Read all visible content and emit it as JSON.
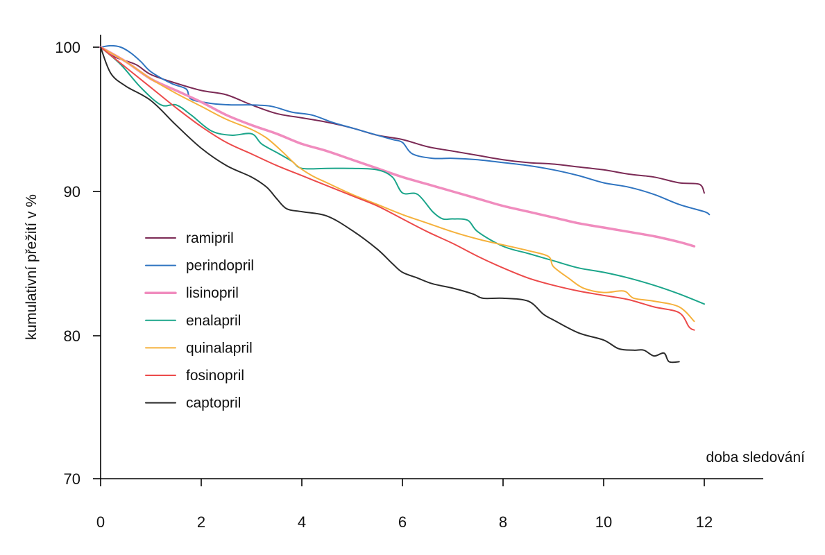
{
  "chart_data": {
    "type": "line",
    "title": "",
    "xlabel": "doba sledování",
    "ylabel": "kumulativní přežití v %",
    "xlim": [
      0,
      13
    ],
    "ylim": [
      70,
      100
    ],
    "xticks": [
      0,
      2,
      4,
      6,
      8,
      10,
      12
    ],
    "yticks": [
      70,
      80,
      90,
      100
    ],
    "grid": false,
    "legend_position": "left",
    "series": [
      {
        "name": "ramipril",
        "color": "#7b2a55",
        "width": 2,
        "x": [
          0,
          0.3,
          0.7,
          1.0,
          1.5,
          2.0,
          2.5,
          3.0,
          3.5,
          4.0,
          4.5,
          5.0,
          5.5,
          6.0,
          6.5,
          7.0,
          7.5,
          8.0,
          8.5,
          9.0,
          9.5,
          10.0,
          10.5,
          11.0,
          11.5,
          11.9,
          12.0
        ],
        "y": [
          100,
          99.3,
          98.8,
          98.1,
          97.5,
          97.0,
          96.7,
          96.0,
          95.4,
          95.1,
          94.8,
          94.4,
          93.9,
          93.6,
          93.1,
          92.8,
          92.5,
          92.2,
          92.0,
          91.9,
          91.7,
          91.5,
          91.2,
          91.0,
          90.6,
          90.5,
          89.9
        ]
      },
      {
        "name": "perindopril",
        "color": "#2f74c0",
        "width": 2,
        "x": [
          0,
          0.2,
          0.4,
          0.6,
          0.8,
          1.0,
          1.4,
          1.7,
          1.8,
          2.2,
          2.6,
          3.0,
          3.4,
          3.8,
          4.2,
          4.6,
          5.0,
          5.4,
          5.8,
          6.0,
          6.2,
          6.6,
          7.0,
          7.5,
          8.0,
          8.5,
          9.0,
          9.5,
          10.0,
          10.5,
          11.0,
          11.5,
          12.0,
          12.1
        ],
        "y": [
          100,
          100.1,
          100.0,
          99.6,
          99.0,
          98.3,
          97.5,
          97.1,
          96.4,
          96.1,
          96.0,
          96.0,
          95.9,
          95.5,
          95.3,
          94.8,
          94.4,
          94.0,
          93.6,
          93.4,
          92.6,
          92.3,
          92.3,
          92.2,
          92.0,
          91.8,
          91.5,
          91.1,
          90.6,
          90.3,
          89.8,
          89.1,
          88.6,
          88.4
        ]
      },
      {
        "name": "lisinopril",
        "color": "#f08cbe",
        "width": 3.5,
        "x": [
          0,
          0.5,
          1.0,
          1.5,
          2.0,
          2.5,
          3.0,
          3.5,
          4.0,
          4.5,
          5.0,
          5.5,
          6.0,
          6.5,
          7.0,
          7.5,
          8.0,
          8.5,
          9.0,
          9.5,
          10.0,
          10.5,
          11.0,
          11.5,
          11.8
        ],
        "y": [
          100,
          99.0,
          97.8,
          97.0,
          96.2,
          95.3,
          94.6,
          94.0,
          93.3,
          92.8,
          92.2,
          91.6,
          91.0,
          90.5,
          90.0,
          89.5,
          89.0,
          88.6,
          88.2,
          87.8,
          87.5,
          87.2,
          86.9,
          86.5,
          86.2
        ]
      },
      {
        "name": "enalapril",
        "color": "#1ba58a",
        "width": 2,
        "x": [
          0,
          0.4,
          0.8,
          1.2,
          1.5,
          1.8,
          2.2,
          2.6,
          3.0,
          3.2,
          3.5,
          3.8,
          4.0,
          4.5,
          5.0,
          5.5,
          5.8,
          6.0,
          6.3,
          6.6,
          6.8,
          7.0,
          7.3,
          7.5,
          8.0,
          8.5,
          9.0,
          9.5,
          10.0,
          10.5,
          11.0,
          11.5,
          12.0
        ],
        "y": [
          100,
          98.8,
          97.2,
          96.0,
          96.0,
          95.3,
          94.2,
          93.9,
          94.0,
          93.3,
          92.7,
          92.1,
          91.6,
          91.6,
          91.6,
          91.5,
          91.0,
          89.9,
          89.8,
          88.6,
          88.1,
          88.1,
          88.0,
          87.2,
          86.2,
          85.7,
          85.2,
          84.7,
          84.4,
          84.0,
          83.5,
          82.9,
          82.2
        ]
      },
      {
        "name": "quinalapril",
        "color": "#f5b13c",
        "width": 2,
        "x": [
          0,
          0.5,
          1.0,
          1.5,
          2.0,
          2.5,
          3.0,
          3.3,
          3.6,
          3.9,
          4.2,
          4.5,
          5.0,
          5.5,
          6.0,
          6.5,
          7.0,
          7.5,
          8.0,
          8.5,
          8.9,
          9.0,
          9.3,
          9.6,
          10.0,
          10.4,
          10.6,
          11.0,
          11.5,
          11.8
        ],
        "y": [
          100,
          99.0,
          97.8,
          96.8,
          95.9,
          95.0,
          94.3,
          93.7,
          92.8,
          91.8,
          91.1,
          90.6,
          89.8,
          89.1,
          88.4,
          87.8,
          87.2,
          86.7,
          86.3,
          85.9,
          85.5,
          84.8,
          84.0,
          83.3,
          83.0,
          83.1,
          82.6,
          82.4,
          82.0,
          81.0
        ]
      },
      {
        "name": "fosinopril",
        "color": "#ec4a4a",
        "width": 2,
        "x": [
          0,
          0.5,
          1.0,
          1.5,
          2.0,
          2.5,
          3.0,
          3.5,
          4.0,
          4.5,
          5.0,
          5.5,
          6.0,
          6.5,
          7.0,
          7.5,
          8.0,
          8.5,
          9.0,
          9.5,
          10.0,
          10.5,
          11.0,
          11.5,
          11.7,
          11.8
        ],
        "y": [
          100,
          98.6,
          97.2,
          95.8,
          94.5,
          93.4,
          92.6,
          91.8,
          91.1,
          90.4,
          89.7,
          89.0,
          88.1,
          87.2,
          86.4,
          85.5,
          84.7,
          84.0,
          83.5,
          83.1,
          82.8,
          82.5,
          82.0,
          81.6,
          80.6,
          80.4
        ]
      },
      {
        "name": "captopril",
        "color": "#2b2b2b",
        "width": 2,
        "x": [
          0,
          0.2,
          0.5,
          1.0,
          1.5,
          2.0,
          2.5,
          3.0,
          3.3,
          3.5,
          3.7,
          4.0,
          4.5,
          5.0,
          5.5,
          5.8,
          6.0,
          6.3,
          6.6,
          7.0,
          7.4,
          7.6,
          8.0,
          8.5,
          8.8,
          9.0,
          9.5,
          10.0,
          10.3,
          10.6,
          10.8,
          11.0,
          11.2,
          11.3,
          11.5
        ],
        "y": [
          100,
          98.2,
          97.3,
          96.3,
          94.6,
          93.0,
          91.8,
          91.0,
          90.3,
          89.5,
          88.8,
          88.6,
          88.3,
          87.3,
          86.0,
          85.0,
          84.4,
          84.0,
          83.6,
          83.3,
          82.9,
          82.6,
          82.6,
          82.4,
          81.5,
          81.1,
          80.2,
          79.7,
          79.1,
          79.0,
          79.0,
          78.6,
          78.8,
          78.2,
          78.2
        ]
      }
    ]
  }
}
